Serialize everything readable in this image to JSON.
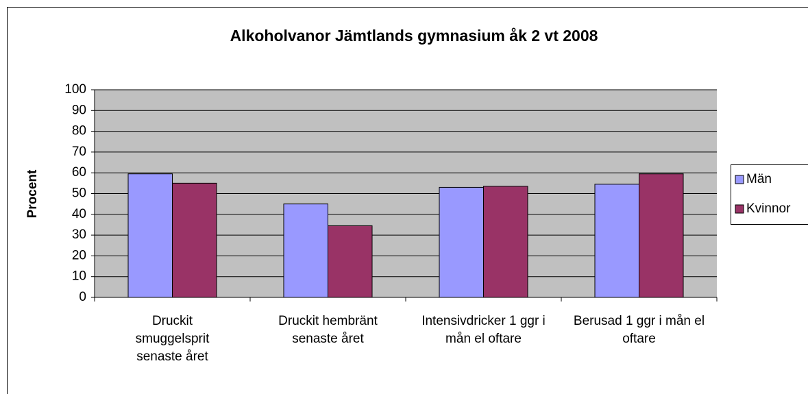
{
  "chart_data": {
    "type": "bar",
    "title": "Alkoholvanor Jämtlands gymnasium åk 2 vt 2008",
    "y_label": "Procent",
    "categories": [
      "Druckit smuggelsprit senaste året",
      "Druckit hembränt senaste året",
      "Intensivdricker 1 ggr i mån el oftare",
      "Berusad 1 ggr i mån el oftare"
    ],
    "series": [
      {
        "name": "Män",
        "color": "#9999ff",
        "values": [
          59.5,
          45,
          53,
          54.5
        ]
      },
      {
        "name": "Kvinnor",
        "color": "#993366",
        "values": [
          55,
          34.5,
          53.5,
          59.5
        ]
      }
    ],
    "ylim": [
      0,
      100
    ],
    "yticks": [
      0,
      10,
      20,
      30,
      40,
      50,
      60,
      70,
      80,
      90,
      100
    ],
    "grid": true,
    "legend": "right"
  }
}
